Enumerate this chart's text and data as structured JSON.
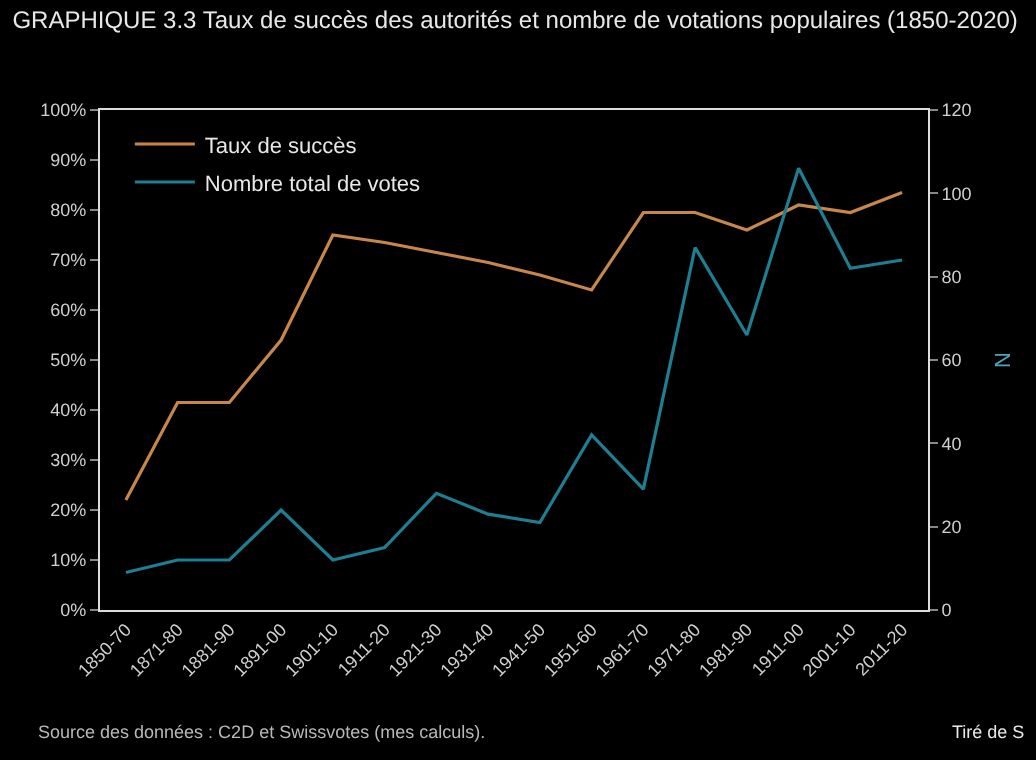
{
  "chart_data": {
    "type": "line",
    "title": "GRAPHIQUE 3.3 Taux de succès des autorités et nombre de votations populaires (1850-2020)",
    "categories": [
      "1850-70",
      "1871-80",
      "1881-90",
      "1891-00",
      "1901-10",
      "1911-20",
      "1921-30",
      "1931-40",
      "1941-50",
      "1951-60",
      "1961-70",
      "1971-80",
      "1981-90",
      "1911-00",
      "2001-10",
      "2011-20"
    ],
    "series": [
      {
        "name": "Taux de succès",
        "color": "#c8874a",
        "values": [
          22,
          41.5,
          41.5,
          54,
          75,
          73.5,
          71.5,
          69.5,
          67,
          64,
          79.5,
          79.5,
          76,
          81,
          79.5,
          83.5
        ]
      },
      {
        "name": "Nombre total de votes",
        "color": "#1d7f91",
        "axis": "y2",
        "values": [
          9,
          12,
          12,
          24,
          12,
          15,
          28,
          23,
          21,
          42,
          29,
          87,
          66,
          106,
          82,
          84
        ]
      }
    ],
    "ylim": [
      0,
      100
    ],
    "yticks": [
      {
        "value": 0,
        "label": "0%"
      },
      {
        "value": 10,
        "label": "10%"
      },
      {
        "value": 20,
        "label": "20%"
      },
      {
        "value": 30,
        "label": "30%"
      },
      {
        "value": 40,
        "label": "40%"
      },
      {
        "value": 50,
        "label": "50%"
      },
      {
        "value": 60,
        "label": "60%"
      },
      {
        "value": 70,
        "label": "70%"
      },
      {
        "value": 80,
        "label": "80%"
      },
      {
        "value": 90,
        "label": "90%"
      },
      {
        "value": 100,
        "label": "100%"
      }
    ],
    "y2lim": [
      0,
      120
    ],
    "y2ticks": [
      0,
      20,
      40,
      60,
      80,
      100,
      120
    ],
    "y2label": "N",
    "grid": false,
    "legend": "top left",
    "annotations": [
      "Source des données : C2D et Swissvotes (mes calculs).",
      "Tiré de S"
    ]
  }
}
